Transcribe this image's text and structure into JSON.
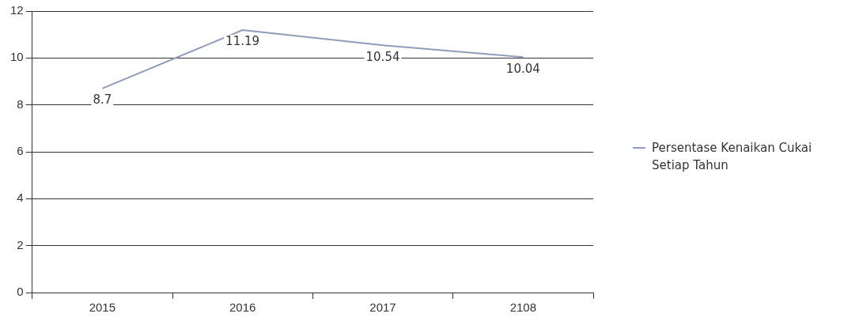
{
  "chart_data": {
    "type": "line",
    "categories": [
      "2015",
      "2016",
      "2017",
      "2108"
    ],
    "series": [
      {
        "name": "Persentase Kenaikan Cukai Setiap Tahun",
        "color": "#8f9dba",
        "values": [
          8.7,
          11.19,
          10.54,
          10.04
        ]
      }
    ],
    "ylim": [
      0,
      12
    ],
    "yticks": [
      0,
      2,
      4,
      6,
      8,
      10,
      12
    ],
    "grid": "y",
    "legend": "right",
    "data_labels": true,
    "marker": "none"
  }
}
